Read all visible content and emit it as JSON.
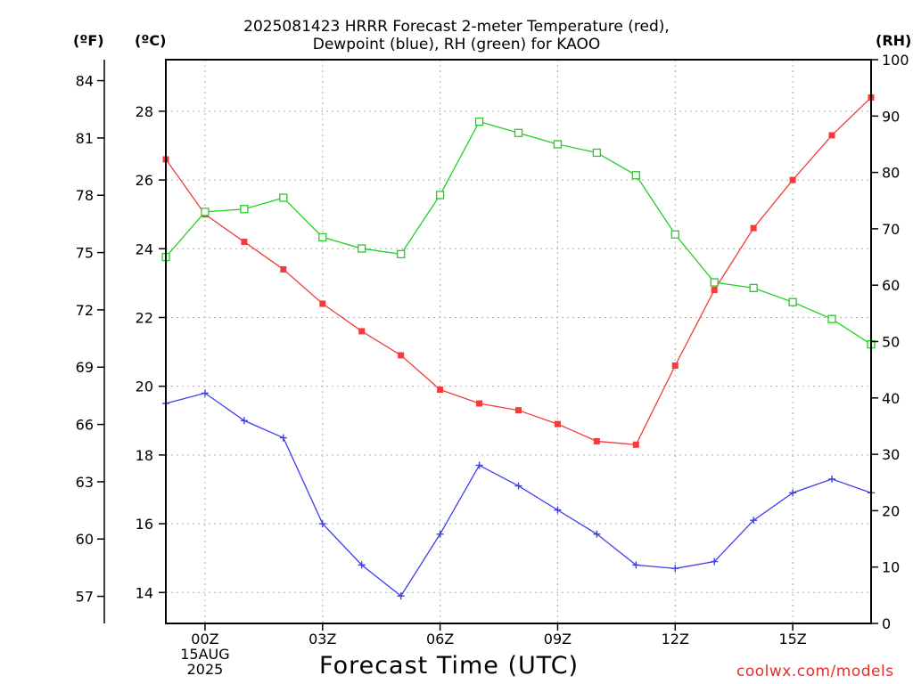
{
  "title": {
    "line1": "2025081423 HRRR Forecast 2-meter Temperature (red),",
    "line2": "Dewpoint (blue), RH (green) for KAOO"
  },
  "units": {
    "f": "(ºF)",
    "c": "(ºC)",
    "rh": "(RH)"
  },
  "xlabel": "Forecast Time (UTC)",
  "credit": "coolwx.com/models",
  "chart_data": {
    "type": "line",
    "x_hours_from_00Z_15AUG2025": [
      -1,
      0,
      1,
      2,
      3,
      4,
      5,
      6,
      7,
      8,
      9,
      10,
      11,
      12,
      13,
      14,
      15,
      16,
      17
    ],
    "xlim": [
      -1,
      17
    ],
    "x_ticks": [
      {
        "hour": 0,
        "lines": [
          "00Z",
          "15AUG",
          "2025"
        ]
      },
      {
        "hour": 3,
        "lines": [
          "03Z"
        ]
      },
      {
        "hour": 6,
        "lines": [
          "06Z"
        ]
      },
      {
        "hour": 9,
        "lines": [
          "09Z"
        ]
      },
      {
        "hour": 12,
        "lines": [
          "12Z"
        ]
      },
      {
        "hour": 15,
        "lines": [
          "15Z"
        ]
      }
    ],
    "y_celsius": {
      "lim": [
        13.1,
        29.5
      ],
      "ticks": [
        14,
        16,
        18,
        20,
        22,
        24,
        26,
        28
      ]
    },
    "y_fahrenheit": {
      "ticks": [
        57,
        60,
        63,
        66,
        69,
        72,
        75,
        78,
        81,
        84
      ]
    },
    "y_rh": {
      "lim": [
        0,
        100
      ],
      "ticks": [
        0,
        10,
        20,
        30,
        40,
        50,
        60,
        70,
        80,
        90,
        100
      ]
    },
    "grid": true,
    "series": [
      {
        "name": "Temperature",
        "axis": "celsius",
        "color": "#f03c3c",
        "marker": "filled-square",
        "values": [
          26.6,
          25.0,
          24.2,
          23.4,
          22.4,
          21.6,
          20.9,
          19.9,
          19.5,
          19.3,
          18.9,
          18.4,
          18.3,
          20.6,
          22.8,
          24.6,
          26.0,
          27.3,
          28.4
        ]
      },
      {
        "name": "Dewpoint",
        "axis": "celsius",
        "color": "#3c3cf0",
        "marker": "plus",
        "values": [
          19.5,
          19.8,
          19.0,
          18.5,
          16.0,
          14.8,
          13.9,
          15.7,
          17.7,
          17.1,
          16.4,
          15.7,
          14.8,
          14.7,
          14.9,
          16.1,
          16.9,
          17.3,
          16.9
        ]
      },
      {
        "name": "RH",
        "axis": "rh",
        "color": "#20d020",
        "marker": "open-square",
        "values": [
          65,
          73,
          73.5,
          75.5,
          68.5,
          66.5,
          65.5,
          76,
          89,
          87,
          85,
          83.5,
          79.5,
          69,
          60.5,
          59.5,
          57,
          54,
          49.5
        ]
      }
    ]
  }
}
